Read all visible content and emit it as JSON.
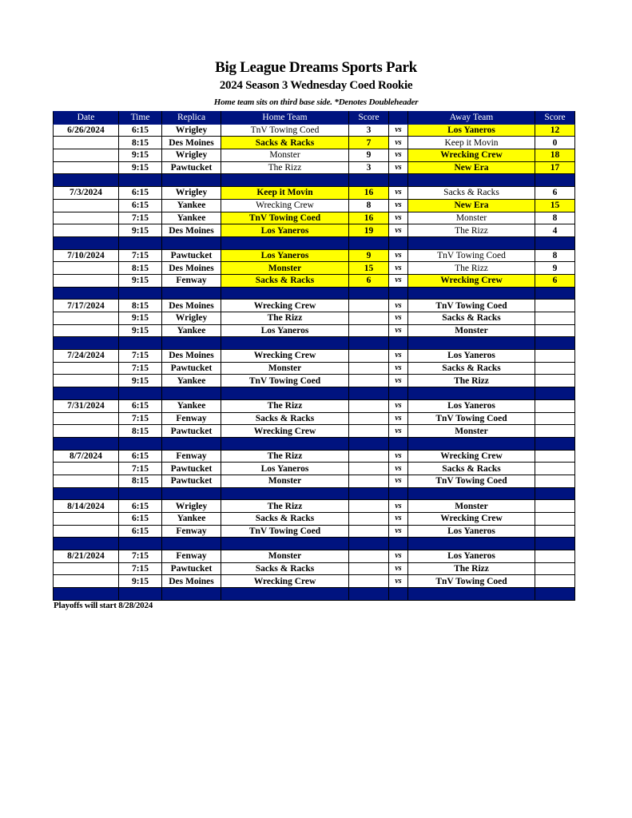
{
  "header": {
    "title": "Big League Dreams Sports Park",
    "subtitle": "2024 Season 3 Wednesday Coed Rookie",
    "note": "Home team sits on third base side.  *Denotes Doubleheader"
  },
  "colors": {
    "header_bg": "#00137f",
    "winner_highlight": "#ffff00"
  },
  "columns": [
    "Date",
    "Time",
    "Replica",
    "Home Team",
    "Score",
    "",
    "Away Team",
    "Score"
  ],
  "vs_label": "vs",
  "weeks": [
    {
      "date": "6/26/2024",
      "games": [
        {
          "time": "6:15",
          "replica": "Wrigley",
          "home": "TnV Towing Coed",
          "home_score": "3",
          "away": "Los Yaneros",
          "away_score": "12",
          "winner": "away"
        },
        {
          "time": "8:15",
          "replica": "Des Moines",
          "home": "Sacks & Racks",
          "home_score": "7",
          "away": "Keep it Movin",
          "away_score": "0",
          "winner": "home"
        },
        {
          "time": "9:15",
          "replica": "Wrigley",
          "home": "Monster",
          "home_score": "9",
          "away": "Wrecking Crew",
          "away_score": "18",
          "winner": "away"
        },
        {
          "time": "9:15",
          "replica": "Pawtucket",
          "home": "The Rizz",
          "home_score": "3",
          "away": "New Era",
          "away_score": "17",
          "winner": "away"
        }
      ]
    },
    {
      "date": "7/3/2024",
      "games": [
        {
          "time": "6:15",
          "replica": "Wrigley",
          "home": "Keep it Movin",
          "home_score": "16",
          "away": "Sacks & Racks",
          "away_score": "6",
          "winner": "home"
        },
        {
          "time": "6:15",
          "replica": "Yankee",
          "home": "Wrecking Crew",
          "home_score": "8",
          "away": "New Era",
          "away_score": "15",
          "winner": "away"
        },
        {
          "time": "7:15",
          "replica": "Yankee",
          "home": "TnV Towing Coed",
          "home_score": "16",
          "away": "Monster",
          "away_score": "8",
          "winner": "home"
        },
        {
          "time": "9:15",
          "replica": "Des Moines",
          "home": "Los Yaneros",
          "home_score": "19",
          "away": "The Rizz",
          "away_score": "4",
          "winner": "home"
        }
      ]
    },
    {
      "date": "7/10/2024",
      "games": [
        {
          "time": "7:15",
          "replica": "Pawtucket",
          "home": "Los Yaneros",
          "home_score": "9",
          "away": "TnV Towing Coed",
          "away_score": "8",
          "winner": "home"
        },
        {
          "time": "8:15",
          "replica": "Des Moines",
          "home": "Monster",
          "home_score": "15",
          "away": "The Rizz",
          "away_score": "9",
          "winner": "home"
        },
        {
          "time": "9:15",
          "replica": "Fenway",
          "home": "Sacks & Racks",
          "home_score": "6",
          "away": "Wrecking Crew",
          "away_score": "6",
          "winner": "tie"
        }
      ]
    },
    {
      "date": "7/17/2024",
      "games": [
        {
          "time": "8:15",
          "replica": "Des Moines",
          "home": "Wrecking Crew",
          "home_score": "",
          "away": "TnV Towing Coed",
          "away_score": "",
          "winner": ""
        },
        {
          "time": "9:15",
          "replica": "Wrigley",
          "home": "The Rizz",
          "home_score": "",
          "away": "Sacks & Racks",
          "away_score": "",
          "winner": ""
        },
        {
          "time": "9:15",
          "replica": "Yankee",
          "home": "Los Yaneros",
          "home_score": "",
          "away": "Monster",
          "away_score": "",
          "winner": ""
        }
      ]
    },
    {
      "date": "7/24/2024",
      "games": [
        {
          "time": "7:15",
          "replica": "Des Moines",
          "home": "Wrecking Crew",
          "home_score": "",
          "away": "Los Yaneros",
          "away_score": "",
          "winner": ""
        },
        {
          "time": "7:15",
          "replica": "Pawtucket",
          "home": "Monster",
          "home_score": "",
          "away": "Sacks & Racks",
          "away_score": "",
          "winner": ""
        },
        {
          "time": "9:15",
          "replica": "Yankee",
          "home": "TnV Towing Coed",
          "home_score": "",
          "away": "The Rizz",
          "away_score": "",
          "winner": ""
        }
      ]
    },
    {
      "date": "7/31/2024",
      "games": [
        {
          "time": "6:15",
          "replica": "Yankee",
          "home": "The Rizz",
          "home_score": "",
          "away": "Los Yaneros",
          "away_score": "",
          "winner": ""
        },
        {
          "time": "7:15",
          "replica": "Fenway",
          "home": "Sacks & Racks",
          "home_score": "",
          "away": "TnV Towing Coed",
          "away_score": "",
          "winner": ""
        },
        {
          "time": "8:15",
          "replica": "Pawtucket",
          "home": "Wrecking Crew",
          "home_score": "",
          "away": "Monster",
          "away_score": "",
          "winner": ""
        }
      ]
    },
    {
      "date": "8/7/2024",
      "games": [
        {
          "time": "6:15",
          "replica": "Fenway",
          "home": "The Rizz",
          "home_score": "",
          "away": "Wrecking Crew",
          "away_score": "",
          "winner": ""
        },
        {
          "time": "7:15",
          "replica": "Pawtucket",
          "home": "Los Yaneros",
          "home_score": "",
          "away": "Sacks & Racks",
          "away_score": "",
          "winner": ""
        },
        {
          "time": "8:15",
          "replica": "Pawtucket",
          "home": "Monster",
          "home_score": "",
          "away": "TnV Towing Coed",
          "away_score": "",
          "winner": ""
        }
      ]
    },
    {
      "date": "8/14/2024",
      "games": [
        {
          "time": "6:15",
          "replica": "Wrigley",
          "home": "The Rizz",
          "home_score": "",
          "away": "Monster",
          "away_score": "",
          "winner": ""
        },
        {
          "time": "6:15",
          "replica": "Yankee",
          "home": "Sacks & Racks",
          "home_score": "",
          "away": "Wrecking Crew",
          "away_score": "",
          "winner": ""
        },
        {
          "time": "6:15",
          "replica": "Fenway",
          "home": "TnV Towing Coed",
          "home_score": "",
          "away": "Los Yaneros",
          "away_score": "",
          "winner": ""
        }
      ]
    },
    {
      "date": "8/21/2024",
      "games": [
        {
          "time": "7:15",
          "replica": "Fenway",
          "home": "Monster",
          "home_score": "",
          "away": "Los Yaneros",
          "away_score": "",
          "winner": ""
        },
        {
          "time": "7:15",
          "replica": "Pawtucket",
          "home": "Sacks & Racks",
          "home_score": "",
          "away": "The Rizz",
          "away_score": "",
          "winner": ""
        },
        {
          "time": "9:15",
          "replica": "Des Moines",
          "home": "Wrecking Crew",
          "home_score": "",
          "away": "TnV Towing Coed",
          "away_score": "",
          "winner": ""
        }
      ]
    }
  ],
  "footer": "Playoffs will start 8/28/2024"
}
